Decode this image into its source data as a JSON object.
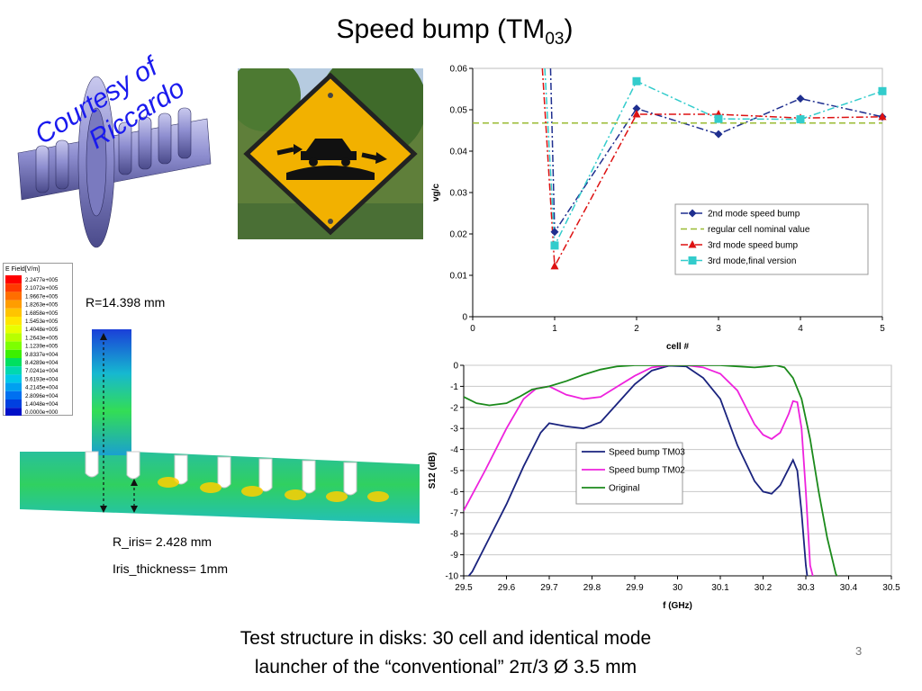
{
  "slide": {
    "title_main": "Speed bump (TM",
    "title_sub": "03",
    "title_close": ")",
    "courtesy_line1": "Courtesy of",
    "courtesy_line2": "Riccardo",
    "radius_label": "R=14.398 mm",
    "r_iris_label": "R_iris= 2.428 mm",
    "iris_thickness_label": "Iris_thickness= 1mm",
    "footer_line1": "Test structure in disks: 30 cell and identical mode",
    "footer_line2": "launcher of the “conventional” 2π/3 Ø 3.5 mm",
    "page_number": "3"
  },
  "field_legend": {
    "title": "E Field[V/m]",
    "values": [
      "2.2477e+005",
      "2.1072e+005",
      "1.9667e+005",
      "1.8263e+005",
      "1.6858e+005",
      "1.5453e+005",
      "1.4048e+005",
      "1.2643e+005",
      "1.1239e+005",
      "9.8337e+004",
      "8.4289e+004",
      "7.0241e+004",
      "5.6193e+004",
      "4.2145e+004",
      "2.8096e+004",
      "1.4048e+004",
      "0.0000e+000"
    ],
    "colors": [
      "#ff0000",
      "#ff3a00",
      "#ff6e00",
      "#ff9d00",
      "#ffc400",
      "#ffe600",
      "#e8ff00",
      "#b8ff00",
      "#7dff00",
      "#3cf000",
      "#00e060",
      "#00d8b0",
      "#00c8e8",
      "#00a0f0",
      "#0070f0",
      "#0040e0",
      "#0010c8"
    ]
  },
  "chart_data": [
    {
      "type": "line",
      "xlabel": "cell #",
      "ylabel": "vg/c",
      "xlim": [
        0,
        5
      ],
      "ylim": [
        0,
        0.06
      ],
      "x_ticks": [
        "0",
        "1",
        "2",
        "3",
        "4",
        "5"
      ],
      "y_ticks": [
        "0",
        "0.01",
        "0.02",
        "0.03",
        "0.04",
        "0.05",
        "0.06"
      ],
      "legend_position": "lower-right",
      "series": [
        {
          "name": "2nd mode speed bump",
          "color": "#1f2f8f",
          "marker": "diamond",
          "dash": "dashdot",
          "x": [
            0.95,
            1,
            2,
            3,
            4,
            5
          ],
          "y": [
            0.06,
            0.0205,
            0.0503,
            0.0441,
            0.0527,
            0.0483
          ]
        },
        {
          "name": "regular cell nominal value",
          "color": "#99bb33",
          "marker": "none",
          "dash": "dash",
          "x": [
            0,
            5
          ],
          "y": [
            0.0468,
            0.0468
          ]
        },
        {
          "name": "3rd mode speed bump",
          "color": "#dd1111",
          "marker": "triangle",
          "dash": "dashdot",
          "x": [
            0.85,
            1,
            2,
            3,
            4,
            5
          ],
          "y": [
            0.06,
            0.0122,
            0.0489,
            0.0489,
            0.048,
            0.0483
          ]
        },
        {
          "name": "3rd mode,final version",
          "color": "#33cccc",
          "marker": "square",
          "dash": "dashdot",
          "x": [
            0.88,
            1,
            2,
            3,
            4,
            5
          ],
          "y": [
            0.06,
            0.0172,
            0.0569,
            0.0478,
            0.0477,
            0.0545
          ]
        }
      ]
    },
    {
      "type": "line",
      "xlabel": "f (GHz)",
      "ylabel": "S12 (dB)",
      "xlim": [
        29.5,
        30.5
      ],
      "ylim": [
        -10,
        0
      ],
      "x_ticks": [
        "29.5",
        "29.6",
        "29.7",
        "29.8",
        "29.9",
        "30",
        "30.1",
        "30.2",
        "30.3",
        "30.4",
        "30.5"
      ],
      "y_ticks": [
        "0",
        "-1",
        "-2",
        "-3",
        "-4",
        "-5",
        "-6",
        "-7",
        "-8",
        "-9",
        "-10"
      ],
      "legend_position": "center",
      "series": [
        {
          "name": "Speed bump TM03",
          "color": "#1a237e",
          "x": [
            29.5,
            29.52,
            29.56,
            29.6,
            29.64,
            29.68,
            29.7,
            29.74,
            29.78,
            29.82,
            29.86,
            29.9,
            29.94,
            29.98,
            30.02,
            30.06,
            30.1,
            30.14,
            30.18,
            30.2,
            30.22,
            30.24,
            30.26,
            30.27,
            30.28,
            30.29,
            30.3,
            30.305
          ],
          "y": [
            -10.3,
            -9.8,
            -8.2,
            -6.6,
            -4.8,
            -3.2,
            -2.75,
            -2.9,
            -3.0,
            -2.7,
            -1.8,
            -0.9,
            -0.25,
            -0.02,
            -0.05,
            -0.6,
            -1.6,
            -3.8,
            -5.5,
            -6.0,
            -6.1,
            -5.7,
            -4.9,
            -4.5,
            -5.0,
            -7.0,
            -9.5,
            -10.3
          ]
        },
        {
          "name": "Speed bump TM02",
          "color": "#ee22dd",
          "x": [
            29.5,
            29.55,
            29.6,
            29.64,
            29.67,
            29.7,
            29.74,
            29.78,
            29.82,
            29.86,
            29.9,
            29.94,
            29.98,
            30.02,
            30.06,
            30.1,
            30.14,
            30.18,
            30.2,
            30.22,
            30.24,
            30.26,
            30.27,
            30.28,
            30.29,
            30.3,
            30.31,
            30.32
          ],
          "y": [
            -6.9,
            -5.0,
            -3.0,
            -1.6,
            -1.1,
            -1.0,
            -1.4,
            -1.6,
            -1.5,
            -1.0,
            -0.5,
            -0.1,
            0,
            0,
            -0.1,
            -0.4,
            -1.2,
            -2.8,
            -3.3,
            -3.5,
            -3.2,
            -2.3,
            -1.7,
            -1.75,
            -3.0,
            -6.0,
            -9.5,
            -10.3
          ]
        },
        {
          "name": "Original",
          "color": "#1b8a1b",
          "x": [
            29.5,
            29.53,
            29.56,
            29.6,
            29.63,
            29.66,
            29.7,
            29.74,
            29.78,
            29.82,
            29.86,
            29.9,
            29.94,
            29.98,
            30.02,
            30.06,
            30.1,
            30.14,
            30.18,
            30.21,
            30.23,
            30.25,
            30.27,
            30.29,
            30.31,
            30.33,
            30.35,
            30.37,
            30.38
          ],
          "y": [
            -1.5,
            -1.8,
            -1.9,
            -1.8,
            -1.5,
            -1.15,
            -1.0,
            -0.75,
            -0.45,
            -0.2,
            -0.05,
            0,
            0,
            0,
            0,
            0,
            0,
            -0.05,
            -0.1,
            -0.05,
            0,
            -0.1,
            -0.6,
            -1.6,
            -3.5,
            -6.0,
            -8.2,
            -9.9,
            -10.3
          ]
        }
      ]
    }
  ]
}
